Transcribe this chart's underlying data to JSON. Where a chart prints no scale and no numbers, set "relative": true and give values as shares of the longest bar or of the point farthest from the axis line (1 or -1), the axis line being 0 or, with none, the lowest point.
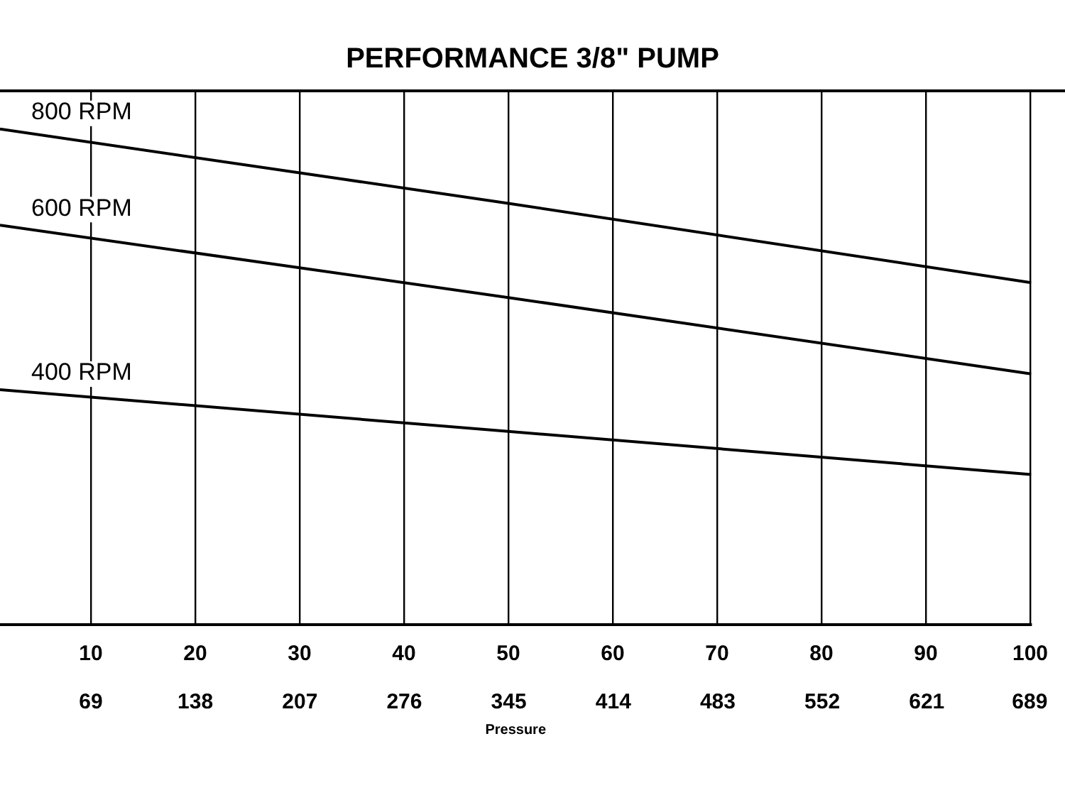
{
  "chart_data": {
    "type": "line",
    "title": "PERFORMANCE 3/8\" PUMP",
    "xlabel": "Pressure",
    "relative": true,
    "xlim": [
      1.3,
      100.1
    ],
    "xticks": [
      10,
      20,
      30,
      40,
      50,
      60,
      70,
      80,
      90,
      100
    ],
    "x2lim": [
      9,
      690
    ],
    "x2ticks": [
      69,
      138,
      207,
      276,
      345,
      414,
      483,
      552,
      621,
      689
    ],
    "grid": "x",
    "legend": false,
    "marker": "none",
    "line_style": "solid",
    "series": [
      {
        "name": "800 RPM",
        "color": "#000000",
        "x": [
          1.3,
          50,
          100.1
        ],
        "values": [
          1,
          0.85,
          0.69
        ]
      },
      {
        "name": "600 RPM",
        "color": "#000000",
        "x": [
          1.3,
          50,
          100.1
        ],
        "values": [
          0.806,
          0.66,
          0.506
        ]
      },
      {
        "name": "400 RPM",
        "color": "#000000",
        "x": [
          1.3,
          50,
          100.1
        ],
        "values": [
          0.474,
          0.39,
          0.303
        ]
      }
    ]
  }
}
